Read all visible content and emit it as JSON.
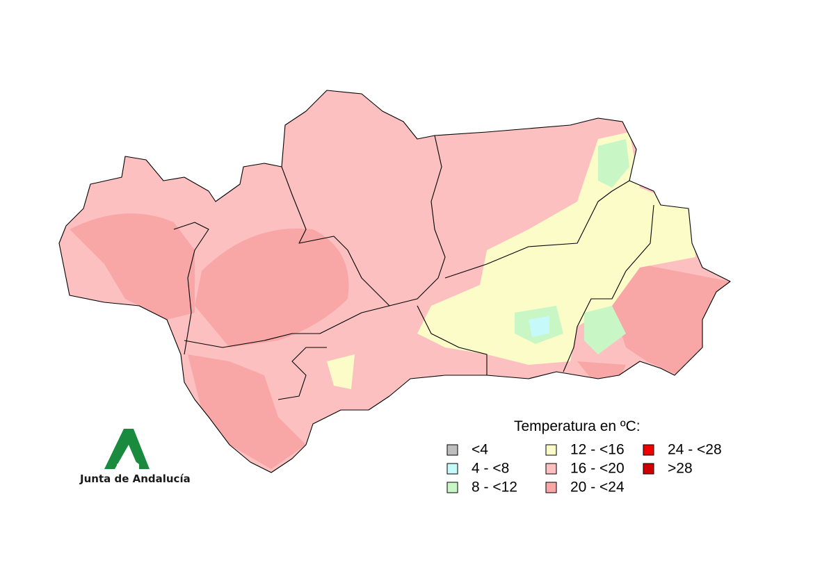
{
  "map": {
    "legend": {
      "title": "Temperatura en ºC:",
      "items": [
        {
          "label": "<4",
          "color": "#bebebe"
        },
        {
          "label": "4 - <8",
          "color": "#c6fafa"
        },
        {
          "label": "8 - <12",
          "color": "#c8f7c5"
        },
        {
          "label": "12 - <16",
          "color": "#fcfcc8"
        },
        {
          "label": "16 - <20",
          "color": "#fdc0c0"
        },
        {
          "label": "20 - <24",
          "color": "#f8a6a6"
        },
        {
          "label": "24 - <28",
          "color": "#ee0000"
        },
        {
          "label": ">28",
          "color": "#cc0000"
        }
      ]
    },
    "logo": {
      "text": "Junta de Andalucía"
    }
  }
}
